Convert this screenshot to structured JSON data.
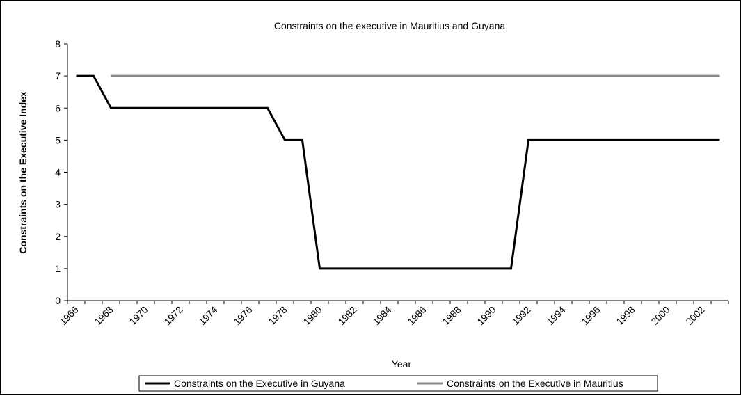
{
  "chart_data": {
    "type": "line",
    "title": "Constraints on the executive in Mauritius and Guyana",
    "xlabel": "Year",
    "ylabel": "Constraints on the Executive Index",
    "categories": [
      "1966",
      null,
      "1968",
      null,
      "1970",
      null,
      "1972",
      null,
      "1974",
      null,
      "1976",
      null,
      "1978",
      null,
      "1980",
      null,
      "1982",
      null,
      "1984",
      null,
      "1986",
      null,
      "1988",
      null,
      "1990",
      null,
      "1992",
      null,
      "1994",
      null,
      "1996",
      null,
      "1998",
      null,
      "2000",
      null,
      "2002",
      null
    ],
    "series": [
      {
        "name": "Constraints on the Executive in Guyana",
        "color": "#000000",
        "values": [
          7,
          7,
          6,
          6,
          6,
          6,
          6,
          6,
          6,
          6,
          6,
          6,
          5,
          5,
          1,
          1,
          1,
          1,
          1,
          1,
          1,
          1,
          1,
          1,
          1,
          1,
          5,
          5,
          5,
          5,
          5,
          5,
          5,
          5,
          5,
          5,
          5,
          5
        ]
      },
      {
        "name": "Constraints on the Executive in Mauritius",
        "color": "#888888",
        "values": [
          null,
          null,
          7,
          7,
          7,
          7,
          7,
          7,
          7,
          7,
          7,
          7,
          7,
          7,
          7,
          7,
          7,
          7,
          7,
          7,
          7,
          7,
          7,
          7,
          7,
          7,
          7,
          7,
          7,
          7,
          7,
          7,
          7,
          7,
          7,
          7,
          7,
          7
        ]
      }
    ],
    "ylim": [
      0,
      8
    ],
    "yticks": [
      0,
      1,
      2,
      3,
      4,
      5,
      6,
      7,
      8
    ],
    "legend": "bottom"
  }
}
